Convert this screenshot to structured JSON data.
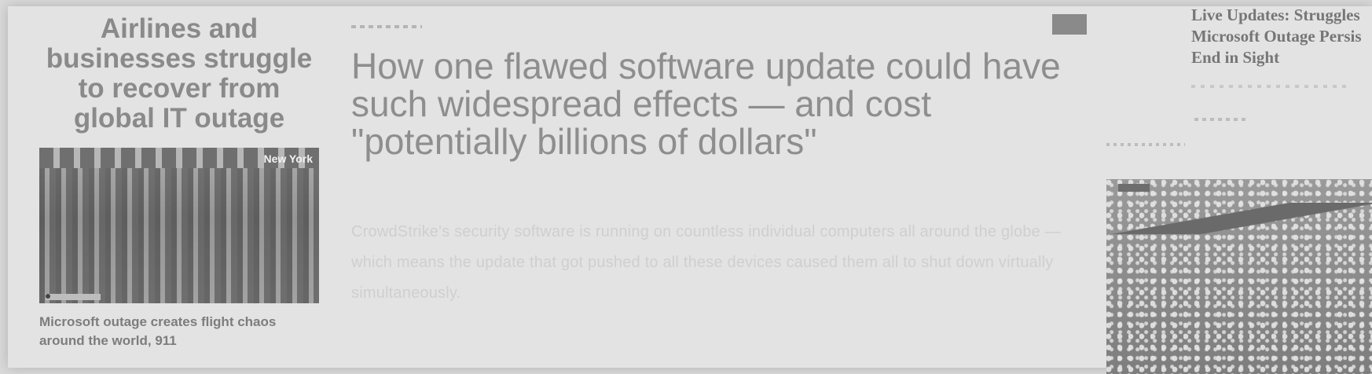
{
  "left": {
    "headline": "Airlines and businesses struggle to recover from global IT outage",
    "photo_label": "New York",
    "caption": "Microsoft outage creates flight chaos around the world, 911"
  },
  "center": {
    "headline": "How one flawed software update could have such widespread effects — and cost \"potentially billions of dollars\"",
    "dek": "CrowdStrike's security software is running on countless individual computers all around the globe — which means the update that got pushed to all these devices caused them all to shut down virtually simultaneously."
  },
  "right": {
    "live_title_line1": "Live Updates: Struggles",
    "live_title_line2": "Microsoft Outage Persis",
    "live_title_line3": "End in Sight"
  }
}
